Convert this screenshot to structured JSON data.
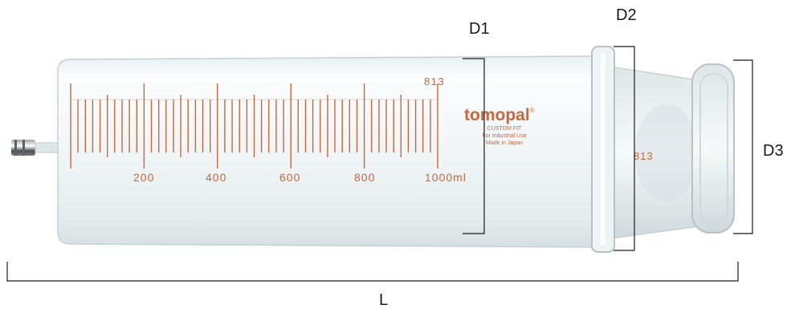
{
  "dimensions": {
    "d1": "D1",
    "d2": "D2",
    "d3": "D3",
    "l": "L"
  },
  "syringe": {
    "serial_main": "813",
    "serial_plunger": "813",
    "brand": "tomopal",
    "brand_mark": "®",
    "tagline_1": "CUSTOM FIT",
    "tagline_2": "For Industrial Use",
    "tagline_3": "Made in Japan",
    "scale_labels": [
      "200",
      "400",
      "600",
      "800",
      "1000ml"
    ],
    "graduation_color": "#c8663e"
  }
}
